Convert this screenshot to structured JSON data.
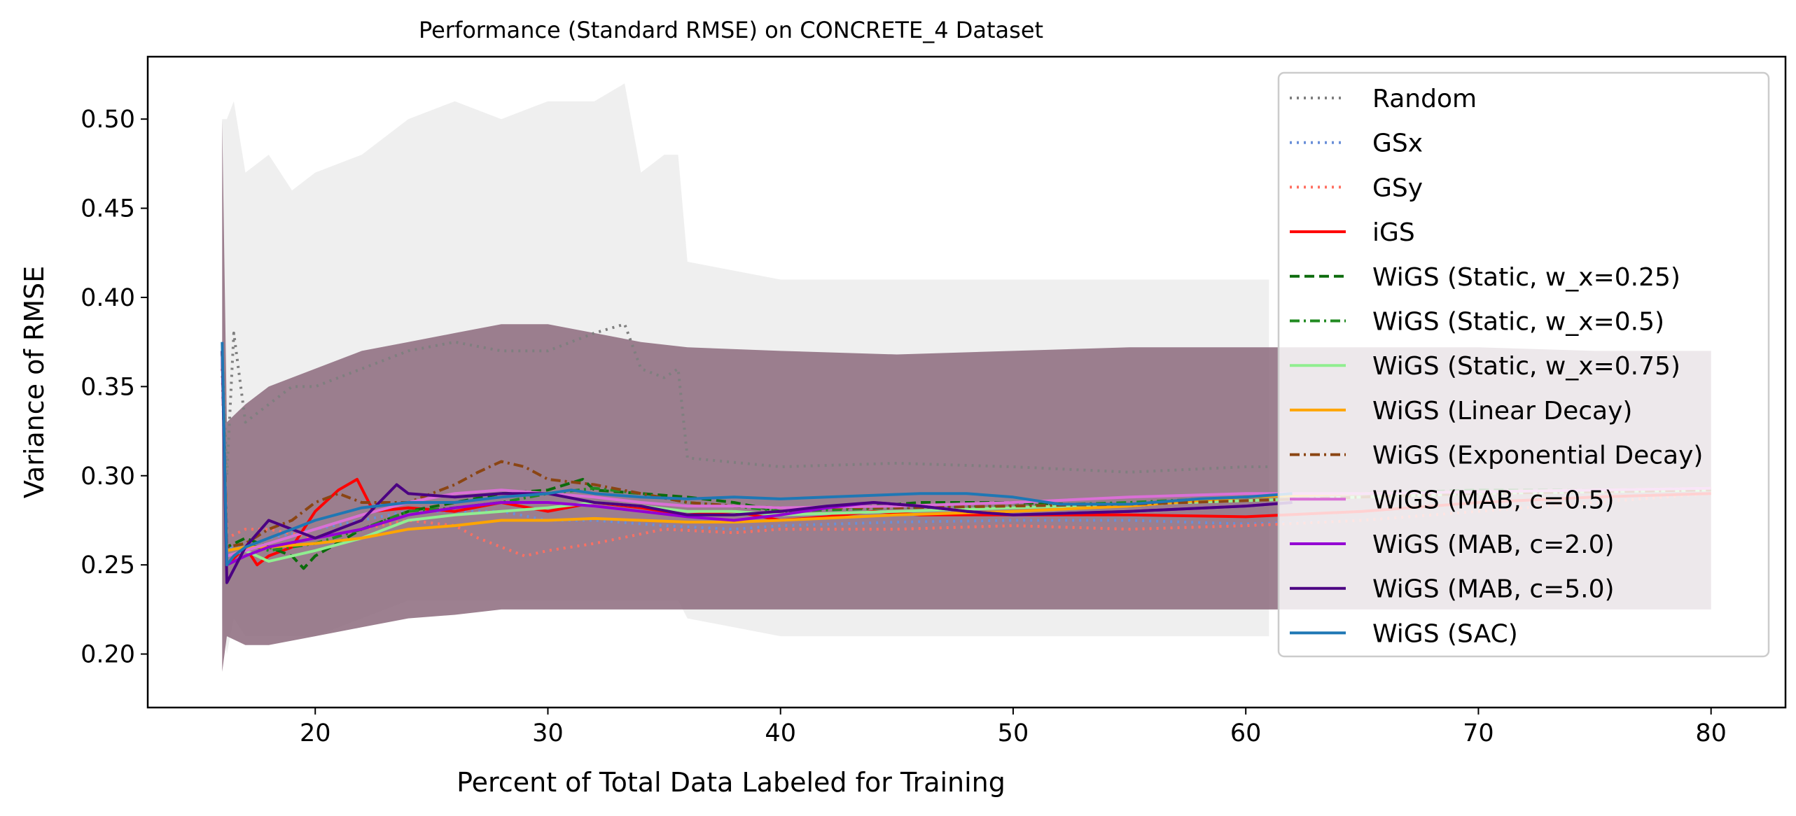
{
  "chart_data": {
    "type": "line",
    "title": "Performance (Standard RMSE) on CONCRETE_4 Dataset",
    "xlabel": "Percent of Total Data Labeled for Training",
    "ylabel": "Variance of RMSE",
    "xlim": [
      12.8,
      83.2
    ],
    "ylim": [
      0.17,
      0.535
    ],
    "xticks": [
      20,
      30,
      40,
      50,
      60,
      70,
      80
    ],
    "xtick_labels": [
      "20",
      "30",
      "40",
      "50",
      "60",
      "70",
      "80"
    ],
    "yticks": [
      0.2,
      0.25,
      0.3,
      0.35,
      0.4,
      0.45,
      0.5
    ],
    "ytick_labels": [
      "0.20",
      "0.25",
      "0.30",
      "0.35",
      "0.40",
      "0.45",
      "0.50"
    ],
    "grid": false,
    "legend_position": "top-right",
    "series": [
      {
        "name": "Random",
        "color": "#7f7f7f",
        "dash": "dotted",
        "x": [
          16,
          16.2,
          16.5,
          17,
          18,
          19,
          20,
          22,
          24,
          26,
          28,
          30,
          32,
          33.3,
          34,
          35,
          35.6,
          36,
          40,
          45,
          50,
          55,
          60,
          61
        ],
        "y": [
          0.37,
          0.3,
          0.38,
          0.33,
          0.34,
          0.35,
          0.35,
          0.36,
          0.37,
          0.375,
          0.37,
          0.37,
          0.38,
          0.385,
          0.36,
          0.355,
          0.36,
          0.31,
          0.305,
          0.307,
          0.305,
          0.302,
          0.305,
          0.305
        ],
        "upper": [
          0.5,
          0.5,
          0.51,
          0.47,
          0.48,
          0.46,
          0.47,
          0.48,
          0.5,
          0.51,
          0.5,
          0.51,
          0.51,
          0.52,
          0.47,
          0.48,
          0.48,
          0.42,
          0.41,
          0.41,
          0.41,
          0.41,
          0.41,
          0.41
        ],
        "lower": [
          0.22,
          0.2,
          0.22,
          0.21,
          0.21,
          0.21,
          0.21,
          0.22,
          0.23,
          0.23,
          0.23,
          0.23,
          0.23,
          0.23,
          0.23,
          0.23,
          0.23,
          0.22,
          0.21,
          0.21,
          0.21,
          0.21,
          0.21,
          0.21
        ]
      },
      {
        "name": "GSx",
        "color": "#6a8fd8",
        "dash": "dotted",
        "x": [
          16,
          16.2,
          17,
          18,
          20,
          22,
          24,
          26,
          28,
          30,
          32,
          35,
          38,
          40,
          45,
          50,
          55,
          60,
          65,
          70,
          75,
          80
        ],
        "y": [
          0.36,
          0.26,
          0.26,
          0.265,
          0.27,
          0.275,
          0.28,
          0.28,
          0.28,
          0.275,
          0.275,
          0.272,
          0.27,
          0.272,
          0.274,
          0.275,
          0.275,
          0.273,
          0.275,
          0.28,
          0.285,
          0.29
        ]
      },
      {
        "name": "GSy",
        "color": "#ff6f61",
        "dash": "dotted",
        "x": [
          16,
          16.2,
          17,
          18,
          20,
          22,
          24,
          26,
          27,
          28,
          29,
          30,
          32,
          35,
          38,
          40,
          45,
          50,
          55,
          60,
          65,
          70,
          75,
          80
        ],
        "y": [
          0.36,
          0.265,
          0.27,
          0.27,
          0.265,
          0.27,
          0.275,
          0.272,
          0.265,
          0.26,
          0.255,
          0.258,
          0.262,
          0.27,
          0.268,
          0.27,
          0.27,
          0.272,
          0.27,
          0.272,
          0.275,
          0.28,
          0.285,
          0.29
        ]
      },
      {
        "name": "iGS",
        "color": "#ff0000",
        "dash": "solid",
        "x": [
          16,
          16.2,
          17,
          17.5,
          18,
          19,
          20,
          21,
          21.8,
          22.5,
          24,
          26,
          28,
          30,
          32,
          34,
          36,
          38,
          40,
          42,
          44,
          46,
          50,
          55,
          60,
          65,
          70,
          75,
          80
        ],
        "y": [
          0.37,
          0.25,
          0.26,
          0.25,
          0.255,
          0.26,
          0.28,
          0.292,
          0.298,
          0.28,
          0.282,
          0.28,
          0.285,
          0.28,
          0.285,
          0.282,
          0.278,
          0.28,
          0.275,
          0.277,
          0.28,
          0.278,
          0.278,
          0.278,
          0.277,
          0.28,
          0.285,
          0.288,
          0.29
        ]
      },
      {
        "name": "WiGS (Static, w_x=0.25)",
        "color": "#0c6b0c",
        "dash": "dashed",
        "x": [
          16,
          16.2,
          17,
          18,
          19,
          19.5,
          20,
          22,
          24,
          26,
          28,
          30,
          31.5,
          32,
          34,
          36,
          38,
          40,
          42,
          44,
          46,
          50,
          55,
          60,
          65,
          70,
          75,
          80
        ],
        "y": [
          0.37,
          0.26,
          0.265,
          0.26,
          0.255,
          0.248,
          0.255,
          0.27,
          0.28,
          0.285,
          0.29,
          0.292,
          0.298,
          0.292,
          0.29,
          0.288,
          0.285,
          0.28,
          0.282,
          0.283,
          0.285,
          0.285,
          0.283,
          0.288,
          0.29,
          0.292,
          0.292,
          0.293
        ]
      },
      {
        "name": "WiGS (Static, w_x=0.5)",
        "color": "#228b22",
        "dash": "dashdot",
        "x": [
          16,
          16.2,
          17,
          18,
          20,
          22,
          24,
          26,
          28,
          30,
          32,
          34,
          36,
          38,
          40,
          45,
          50,
          55,
          60,
          65,
          70,
          75,
          80
        ],
        "y": [
          0.37,
          0.26,
          0.262,
          0.258,
          0.262,
          0.27,
          0.28,
          0.282,
          0.285,
          0.29,
          0.293,
          0.29,
          0.285,
          0.283,
          0.28,
          0.282,
          0.283,
          0.285,
          0.288,
          0.29,
          0.29,
          0.292,
          0.293
        ]
      },
      {
        "name": "WiGS (Static, w_x=0.75)",
        "color": "#90ee90",
        "dash": "solid",
        "x": [
          16,
          16.2,
          17,
          18,
          19,
          20,
          22,
          24,
          26,
          28,
          30,
          32,
          34,
          36,
          38,
          40,
          45,
          50,
          55,
          60,
          65,
          70,
          75,
          80
        ],
        "y": [
          0.37,
          0.255,
          0.258,
          0.252,
          0.255,
          0.258,
          0.265,
          0.275,
          0.278,
          0.28,
          0.282,
          0.285,
          0.283,
          0.28,
          0.28,
          0.278,
          0.28,
          0.282,
          0.284,
          0.286,
          0.288,
          0.29,
          0.291,
          0.292
        ]
      },
      {
        "name": "WiGS (Linear Decay)",
        "color": "#ffa500",
        "dash": "solid",
        "x": [
          16,
          16.2,
          17,
          18,
          20,
          22,
          24,
          26,
          28,
          30,
          32,
          34,
          36,
          38,
          40,
          45,
          50,
          55,
          60,
          65,
          70,
          75,
          80
        ],
        "y": [
          0.37,
          0.258,
          0.26,
          0.26,
          0.262,
          0.265,
          0.27,
          0.272,
          0.275,
          0.275,
          0.276,
          0.275,
          0.274,
          0.274,
          0.275,
          0.278,
          0.28,
          0.283,
          0.288,
          0.29,
          0.291,
          0.292,
          0.293
        ]
      },
      {
        "name": "WiGS (Exponential Decay)",
        "color": "#8b4513",
        "dash": "dashdot",
        "x": [
          16,
          16.2,
          17,
          18,
          19,
          20,
          21,
          22,
          24,
          26,
          27,
          28,
          29,
          30,
          32,
          34,
          36,
          38,
          40,
          45,
          50,
          55,
          60,
          65,
          70,
          75,
          80
        ],
        "y": [
          0.37,
          0.26,
          0.262,
          0.27,
          0.275,
          0.285,
          0.29,
          0.285,
          0.285,
          0.295,
          0.302,
          0.308,
          0.305,
          0.298,
          0.295,
          0.29,
          0.285,
          0.283,
          0.282,
          0.282,
          0.283,
          0.284,
          0.286,
          0.288,
          0.29,
          0.291,
          0.292
        ]
      },
      {
        "name": "WiGS (MAB, c=0.5)",
        "color": "#da70d6",
        "dash": "solid",
        "x": [
          16,
          16.2,
          17,
          18,
          20,
          22,
          24,
          26,
          28,
          30,
          32,
          34,
          36,
          38,
          40,
          45,
          50,
          55,
          60,
          65,
          70,
          75,
          80
        ],
        "y": [
          0.37,
          0.255,
          0.258,
          0.262,
          0.27,
          0.278,
          0.285,
          0.29,
          0.292,
          0.29,
          0.288,
          0.285,
          0.283,
          0.283,
          0.282,
          0.283,
          0.285,
          0.288,
          0.29,
          0.29,
          0.291,
          0.292,
          0.293
        ]
      },
      {
        "name": "WiGS (MAB, c=2.0)",
        "color": "#9400d3",
        "dash": "solid",
        "x": [
          16,
          16.2,
          17,
          18,
          20,
          22,
          24,
          26,
          28,
          30,
          32,
          34,
          36,
          38,
          40,
          42,
          44,
          46,
          48,
          50,
          55,
          60,
          62
        ],
        "y": [
          0.37,
          0.25,
          0.255,
          0.26,
          0.265,
          0.27,
          0.278,
          0.282,
          0.285,
          0.285,
          0.283,
          0.28,
          0.277,
          0.275,
          0.278,
          0.282,
          0.285,
          0.283,
          0.28,
          0.278,
          0.28,
          0.283,
          0.285
        ]
      },
      {
        "name": "WiGS (MAB, c=5.0)",
        "color": "#4b0082",
        "dash": "solid",
        "x": [
          16,
          16.2,
          17,
          18,
          19,
          20,
          22,
          23.5,
          24,
          26,
          28,
          30,
          32,
          34,
          36,
          38,
          40,
          42,
          44,
          46,
          48,
          50,
          55,
          60,
          62
        ],
        "y": [
          0.37,
          0.24,
          0.26,
          0.275,
          0.27,
          0.265,
          0.275,
          0.295,
          0.29,
          0.288,
          0.29,
          0.29,
          0.285,
          0.283,
          0.278,
          0.278,
          0.28,
          0.283,
          0.285,
          0.283,
          0.28,
          0.278,
          0.28,
          0.283,
          0.285
        ]
      },
      {
        "name": "WiGS (SAC)",
        "color": "#1f77b4",
        "dash": "solid",
        "x": [
          16,
          16.2,
          16.5,
          17,
          18,
          19,
          20,
          22,
          24,
          26,
          28,
          30,
          31,
          32,
          34,
          36,
          38,
          40,
          42,
          44,
          46,
          48,
          50,
          52,
          55,
          58,
          60,
          62
        ],
        "y": [
          0.375,
          0.25,
          0.255,
          0.26,
          0.265,
          0.27,
          0.275,
          0.282,
          0.285,
          0.285,
          0.288,
          0.29,
          0.292,
          0.29,
          0.288,
          0.287,
          0.288,
          0.287,
          0.288,
          0.289,
          0.29,
          0.29,
          0.288,
          0.284,
          0.284,
          0.287,
          0.288,
          0.29
        ]
      }
    ],
    "shared_band": {
      "color": "#8c6a7c",
      "x": [
        16,
        16.2,
        17,
        18,
        20,
        22,
        24,
        26,
        28,
        30,
        32,
        34,
        36,
        40,
        45,
        50,
        55,
        60,
        65,
        70,
        75,
        80
      ],
      "upper": [
        0.5,
        0.33,
        0.34,
        0.35,
        0.36,
        0.37,
        0.375,
        0.38,
        0.385,
        0.385,
        0.38,
        0.375,
        0.372,
        0.37,
        0.368,
        0.37,
        0.372,
        0.372,
        0.372,
        0.372,
        0.37,
        0.37
      ],
      "lower": [
        0.19,
        0.21,
        0.205,
        0.205,
        0.21,
        0.215,
        0.22,
        0.222,
        0.225,
        0.225,
        0.225,
        0.225,
        0.225,
        0.225,
        0.225,
        0.225,
        0.225,
        0.225,
        0.225,
        0.225,
        0.225,
        0.225
      ]
    }
  }
}
